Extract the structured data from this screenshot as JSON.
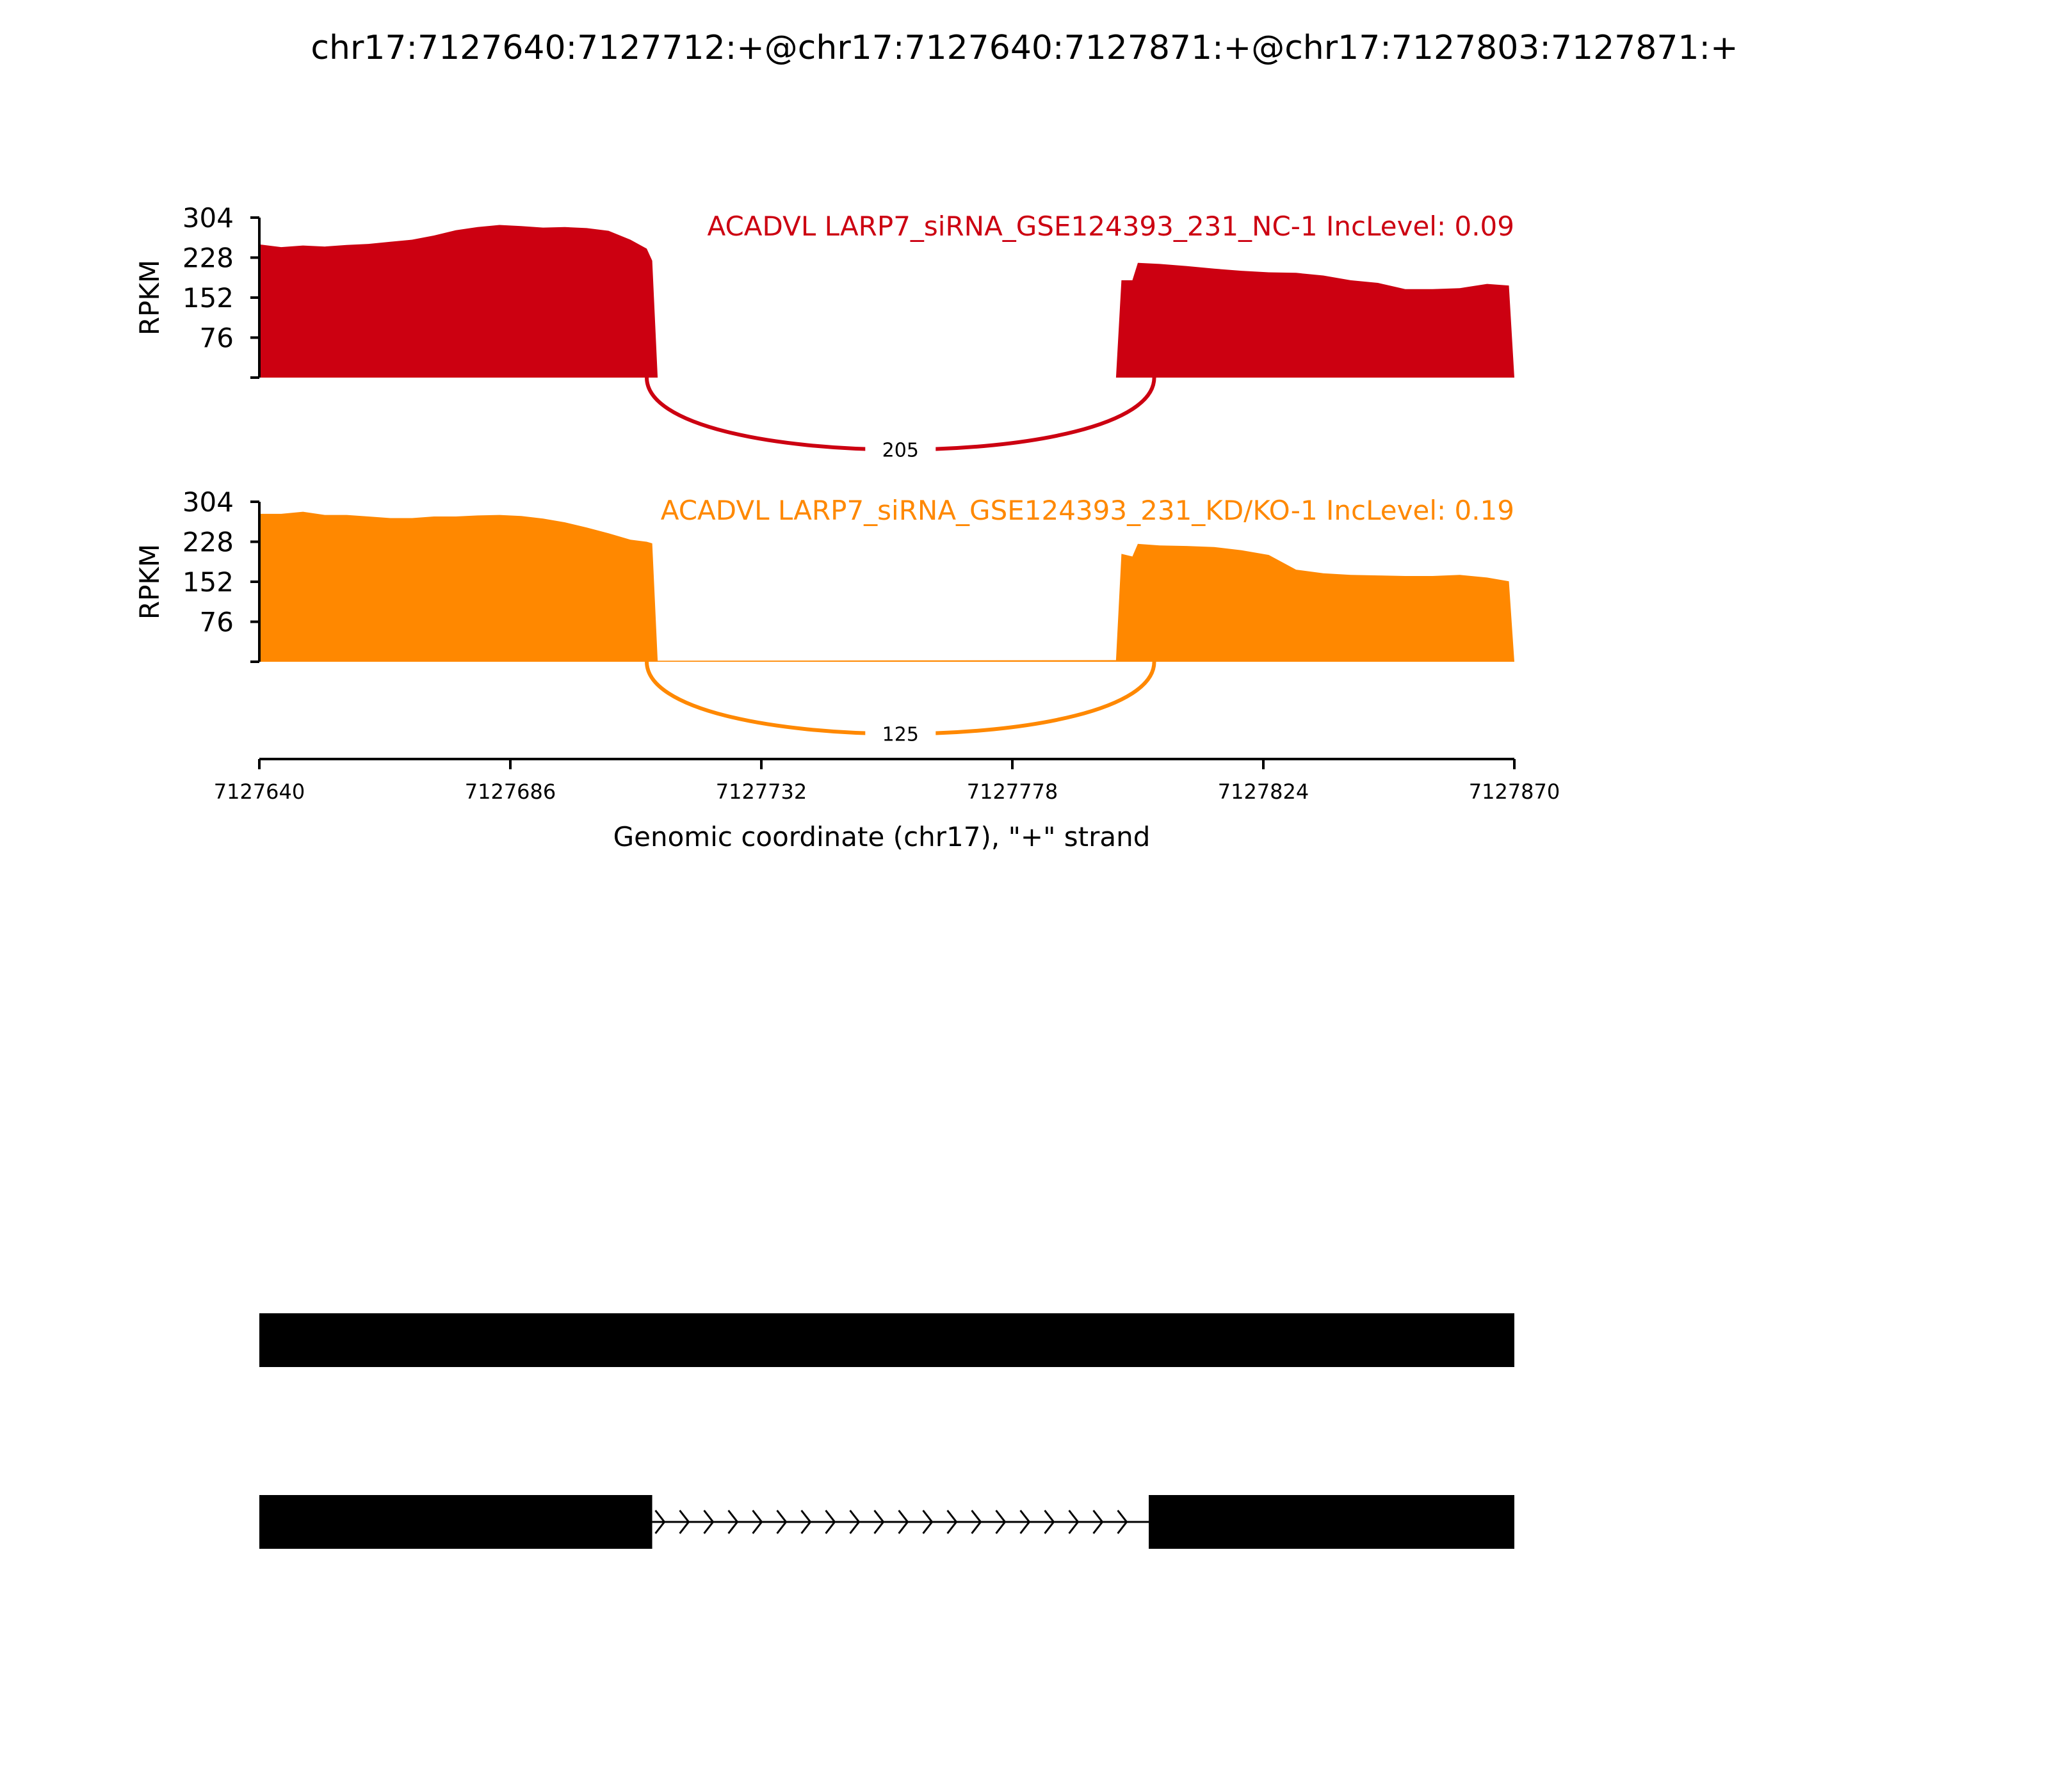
{
  "title": "chr17:7127640:7127712:+@chr17:7127640:7127871:+@chr17:7127803:7127871:+",
  "chart_data": {
    "type": "area",
    "title": "chr17:7127640:7127712:+@chr17:7127640:7127871:+@chr17:7127803:7127871:+",
    "xlabel": "Genomic coordinate (chr17), \"+\" strand",
    "xlim": [
      7127640,
      7127870
    ],
    "xticks": [
      "7127640",
      "7127686",
      "7127732",
      "7127778",
      "7127824",
      "7127870"
    ],
    "xtick_values": [
      7127640,
      7127686,
      7127732,
      7127778,
      7127824,
      7127870
    ],
    "grid": false,
    "panels": [
      {
        "label": "ACADVL LARP7_siRNA_GSE124393_231_NC-1 IncLevel: 0.09",
        "color": "#cc0011",
        "ylabel": "RPKM",
        "ylim": [
          0,
          304
        ],
        "yticks": [
          "304",
          "228",
          "152",
          "76"
        ],
        "ytick_values": [
          304,
          228,
          152,
          76
        ],
        "junction": {
          "label": "205",
          "from": 7127711,
          "to": 7127804
        },
        "coverage": [
          [
            7127640,
            253
          ],
          [
            7127644,
            248
          ],
          [
            7127648,
            251
          ],
          [
            7127652,
            249
          ],
          [
            7127656,
            252
          ],
          [
            7127660,
            254
          ],
          [
            7127664,
            258
          ],
          [
            7127668,
            262
          ],
          [
            7127672,
            270
          ],
          [
            7127676,
            280
          ],
          [
            7127680,
            286
          ],
          [
            7127684,
            290
          ],
          [
            7127688,
            288
          ],
          [
            7127692,
            285
          ],
          [
            7127696,
            286
          ],
          [
            7127700,
            284
          ],
          [
            7127704,
            279
          ],
          [
            7127708,
            262
          ],
          [
            7127711,
            245
          ],
          [
            7127712,
            222
          ],
          [
            7127713,
            0
          ],
          [
            7127797,
            0
          ],
          [
            7127798,
            185
          ],
          [
            7127800,
            185
          ],
          [
            7127801,
            218
          ],
          [
            7127805,
            216
          ],
          [
            7127810,
            212
          ],
          [
            7127815,
            207
          ],
          [
            7127820,
            203
          ],
          [
            7127825,
            200
          ],
          [
            7127830,
            199
          ],
          [
            7127835,
            194
          ],
          [
            7127840,
            185
          ],
          [
            7127845,
            180
          ],
          [
            7127850,
            168
          ],
          [
            7127855,
            168
          ],
          [
            7127860,
            170
          ],
          [
            7127865,
            178
          ],
          [
            7127869,
            175
          ],
          [
            7127870,
            0
          ]
        ]
      },
      {
        "label": "ACADVL LARP7_siRNA_GSE124393_231_KD/KO-1 IncLevel: 0.19",
        "color": "#ff8800",
        "ylabel": "RPKM",
        "ylim": [
          0,
          304
        ],
        "yticks": [
          "304",
          "228",
          "152",
          "76"
        ],
        "ytick_values": [
          304,
          228,
          152,
          76
        ],
        "junction": {
          "label": "125",
          "from": 7127711,
          "to": 7127804
        },
        "coverage": [
          [
            7127640,
            281
          ],
          [
            7127644,
            281
          ],
          [
            7127648,
            285
          ],
          [
            7127652,
            279
          ],
          [
            7127656,
            279
          ],
          [
            7127660,
            276
          ],
          [
            7127664,
            273
          ],
          [
            7127668,
            273
          ],
          [
            7127672,
            276
          ],
          [
            7127676,
            276
          ],
          [
            7127680,
            278
          ],
          [
            7127684,
            279
          ],
          [
            7127688,
            277
          ],
          [
            7127692,
            272
          ],
          [
            7127696,
            265
          ],
          [
            7127700,
            255
          ],
          [
            7127704,
            244
          ],
          [
            7127708,
            232
          ],
          [
            7127711,
            228
          ],
          [
            7127712,
            225
          ],
          [
            7127713,
            2
          ],
          [
            7127797,
            3
          ],
          [
            7127798,
            205
          ],
          [
            7127800,
            200
          ],
          [
            7127801,
            224
          ],
          [
            7127805,
            221
          ],
          [
            7127810,
            220
          ],
          [
            7127815,
            218
          ],
          [
            7127820,
            212
          ],
          [
            7127825,
            203
          ],
          [
            7127830,
            175
          ],
          [
            7127835,
            168
          ],
          [
            7127840,
            165
          ],
          [
            7127845,
            164
          ],
          [
            7127850,
            163
          ],
          [
            7127855,
            163
          ],
          [
            7127860,
            165
          ],
          [
            7127865,
            160
          ],
          [
            7127869,
            153
          ],
          [
            7127870,
            0
          ]
        ]
      }
    ],
    "transcripts": [
      {
        "exons": [
          [
            7127640,
            7127871
          ]
        ]
      },
      {
        "exons": [
          [
            7127640,
            7127712
          ],
          [
            7127803,
            7127871
          ]
        ],
        "strand": "+"
      }
    ]
  }
}
